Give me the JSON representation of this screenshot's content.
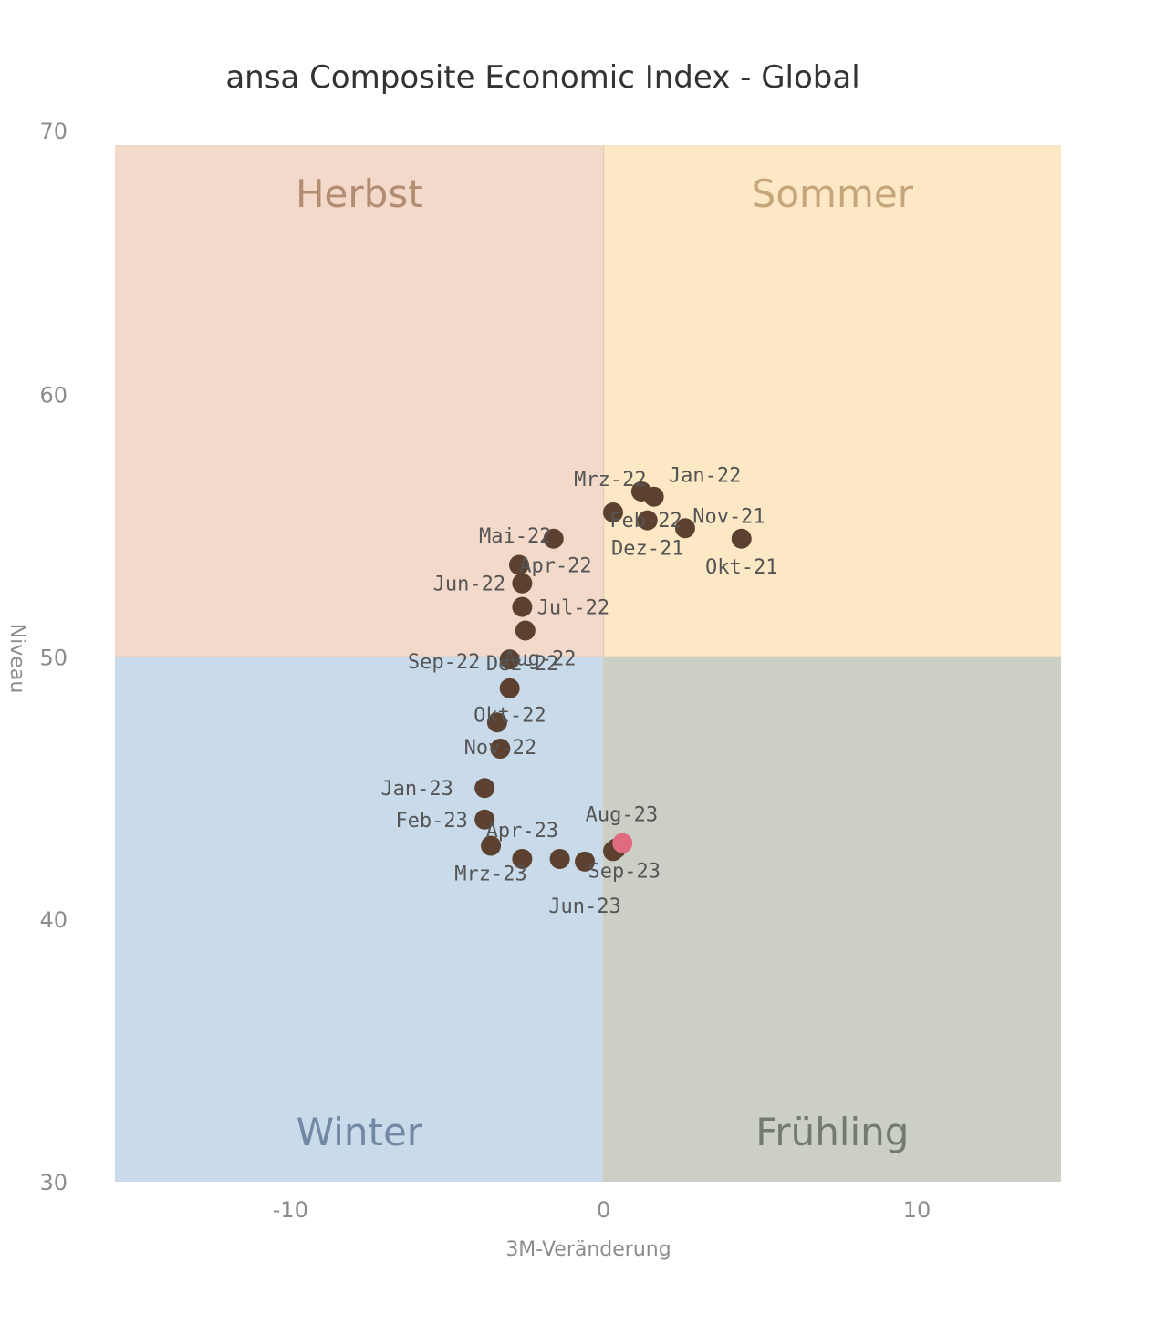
{
  "chart_data": {
    "type": "scatter",
    "title": "ansa Composite Economic Index - Global",
    "xlabel": "3M-Veränderung",
    "ylabel": "Niveau",
    "xlim": [
      -15.6,
      14.6
    ],
    "ylim": [
      30,
      69.5
    ],
    "x_ticks": [
      -10,
      0,
      10
    ],
    "y_ticks": [
      30,
      40,
      50,
      60,
      70
    ],
    "grid": false,
    "quadrants": [
      {
        "name": "Herbst",
        "color": "#f2d9c9",
        "text_color": "#b38d72",
        "xr": [
          -15.6,
          0
        ],
        "yr": [
          50,
          69.5
        ]
      },
      {
        "name": "Sommer",
        "color": "#fde8c6",
        "text_color": "#c4a67a",
        "xr": [
          0,
          14.6
        ],
        "yr": [
          50,
          69.5
        ]
      },
      {
        "name": "Winter",
        "color": "#c9daea",
        "text_color": "#7289a6",
        "xr": [
          -15.6,
          0
        ],
        "yr": [
          30,
          50
        ]
      },
      {
        "name": "Frühling",
        "color": "#cbcfc5",
        "text_color": "#747a70",
        "xr": [
          0,
          14.6
        ],
        "yr": [
          30,
          50
        ]
      }
    ],
    "point_color": "#5c4030",
    "highlight_color": "#e06a80",
    "points": [
      {
        "label": "Okt-21",
        "x": 4.4,
        "y": 54.5
      },
      {
        "label": "Nov-21",
        "x": 2.6,
        "y": 54.9
      },
      {
        "label": "Dez-21",
        "x": 1.4,
        "y": 55.2
      },
      {
        "label": "Jan-22",
        "x": 1.6,
        "y": 56.1
      },
      {
        "label": "Feb-22",
        "x": 0.3,
        "y": 55.5
      },
      {
        "label": "Mrz-22",
        "x": 1.2,
        "y": 56.3
      },
      {
        "label": "Apr-22",
        "x": -2.7,
        "y": 53.5
      },
      {
        "label": "Mai-22",
        "x": -1.6,
        "y": 54.5
      },
      {
        "label": "Jun-22",
        "x": -2.6,
        "y": 52.8
      },
      {
        "label": "Jul-22",
        "x": -2.6,
        "y": 51.9
      },
      {
        "label": "Aug-22",
        "x": -2.5,
        "y": 51.0
      },
      {
        "label": "Sep-22",
        "x": -3.0,
        "y": 49.9
      },
      {
        "label": "Okt-22",
        "x": -3.4,
        "y": 47.5
      },
      {
        "label": "Nov-22",
        "x": -3.3,
        "y": 46.5
      },
      {
        "label": "Dez-22",
        "x": -3.0,
        "y": 48.8
      },
      {
        "label": "Jan-23",
        "x": -3.8,
        "y": 45.0
      },
      {
        "label": "Feb-23",
        "x": -3.8,
        "y": 43.8
      },
      {
        "label": "Mrz-23",
        "x": -3.6,
        "y": 42.8
      },
      {
        "label": "Apr-23",
        "x": -2.6,
        "y": 42.3
      },
      {
        "label": "",
        "x": -1.4,
        "y": 42.3
      },
      {
        "label": "Jun-23",
        "x": -0.6,
        "y": 42.2
      },
      {
        "label": "",
        "x": 0.3,
        "y": 42.6
      },
      {
        "label": "Aug-23",
        "x": 0.4,
        "y": 42.7
      },
      {
        "label": "Sep-23",
        "x": 0.6,
        "y": 42.9,
        "highlight": true
      }
    ]
  }
}
